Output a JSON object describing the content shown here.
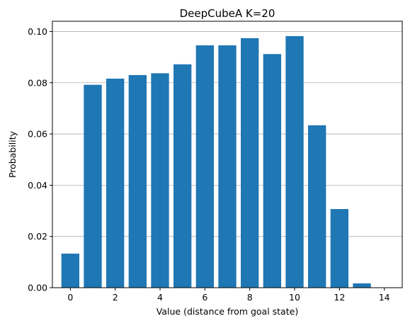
{
  "chart_data": {
    "type": "bar",
    "title": "DeepCubeA K=20",
    "xlabel": "Value (distance from goal state)",
    "ylabel": "Probability",
    "x": [
      0,
      1,
      2,
      3,
      4,
      5,
      6,
      7,
      8,
      9,
      10,
      11,
      12,
      13
    ],
    "values": [
      0.0133,
      0.0792,
      0.0816,
      0.083,
      0.0837,
      0.0872,
      0.0946,
      0.0946,
      0.0974,
      0.0912,
      0.0982,
      0.0634,
      0.0307,
      0.0017
    ],
    "xlim": [
      -0.8,
      14.8
    ],
    "ylim": [
      0,
      0.104
    ],
    "xticks": [
      0,
      2,
      4,
      6,
      8,
      10,
      12,
      14
    ],
    "yticks": [
      0.0,
      0.02,
      0.04,
      0.06,
      0.08,
      0.1
    ],
    "ytick_labels": [
      "0.00",
      "0.02",
      "0.04",
      "0.06",
      "0.08",
      "0.10"
    ],
    "grid": "horizontal",
    "legend": "none",
    "colors": {
      "bar": "#1f77b4",
      "grid": "#b0b0b0",
      "axis": "#000000"
    }
  }
}
